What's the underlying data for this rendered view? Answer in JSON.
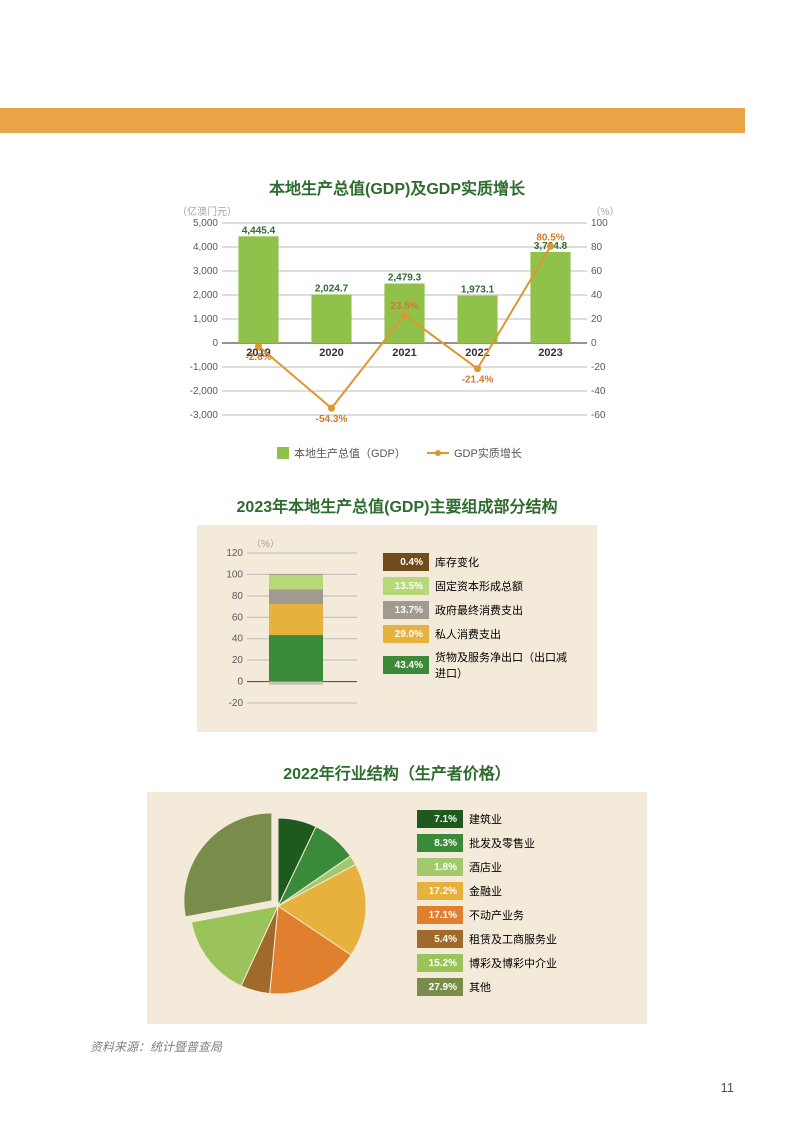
{
  "page_number": "11",
  "source_text": "资料来源：统计暨普查局",
  "chart1": {
    "type": "bar+line",
    "title": "本地生产总值(GDP)及GDP实质增长",
    "left_axis_label": "（亿澳门元）",
    "right_axis_label": "（%）",
    "years": [
      "2019",
      "2020",
      "2021",
      "2022",
      "2023"
    ],
    "bar_values": [
      4445.4,
      2024.7,
      2479.3,
      1973.1,
      3794.8
    ],
    "bar_labels": [
      "4,445.4",
      "2,024.7",
      "2,479.3",
      "1,973.1",
      "3,794.8"
    ],
    "line_values": [
      -2.6,
      -54.3,
      23.5,
      -21.4,
      80.5
    ],
    "line_labels": [
      "-2.6%",
      "-54.3%",
      "23.5%",
      "-21.4%",
      "80.5%"
    ],
    "left_ticks": [
      -3000,
      -2000,
      -1000,
      0,
      1000,
      2000,
      3000,
      4000,
      5000
    ],
    "left_tick_labels": [
      "-3,000",
      "-2,000",
      "-1,000",
      "0",
      "1,000",
      "2,000",
      "3,000",
      "4,000",
      "5,000"
    ],
    "right_ticks": [
      -60,
      -40,
      -20,
      0,
      20,
      40,
      60,
      80,
      100
    ],
    "right_tick_labels": [
      "-60",
      "-40",
      "-20",
      "0",
      "20",
      "40",
      "60",
      "80",
      "100"
    ],
    "bar_color": "#90c14b",
    "line_color": "#e0962e",
    "grid_color": "#bbbbbb",
    "legend_bar": "本地生产总值（GDP）",
    "legend_line": "GDP实质增长"
  },
  "chart2": {
    "type": "stacked-bar",
    "title": "2023年本地生产总值(GDP)主要组成部分结构",
    "axis_label": "（%）",
    "yticks": [
      -20,
      0,
      20,
      40,
      60,
      80,
      100,
      120
    ],
    "ytick_labels": [
      "-20",
      "0",
      "20",
      "40",
      "60",
      "80",
      "100",
      "120"
    ],
    "segments": [
      {
        "label": "0.4%",
        "name": "库存变化",
        "color": "#704c1b"
      },
      {
        "label": "13.5%",
        "name": "固定资本形成总额",
        "color": "#b6d878"
      },
      {
        "label": "13.7%",
        "name": "政府最终消费支出",
        "color": "#a09a90"
      },
      {
        "label": "29.0%",
        "name": "私人消费支出",
        "color": "#e7b13d"
      },
      {
        "label": "43.4%",
        "name": "货物及服务净出口（出口减进口）",
        "color": "#3a8a3a"
      }
    ]
  },
  "chart3": {
    "type": "pie",
    "title": "2022年行业结构（生产者价格）",
    "slices": [
      {
        "label": "7.1%",
        "name": "建筑业",
        "color": "#1e5a1e",
        "value": 7.1
      },
      {
        "label": "8.3%",
        "name": "批发及零售业",
        "color": "#3a8a3a",
        "value": 8.3
      },
      {
        "label": "1.8%",
        "name": "酒店业",
        "color": "#a3c96e",
        "value": 1.8
      },
      {
        "label": "17.2%",
        "name": "金融业",
        "color": "#e7b13d",
        "value": 17.2
      },
      {
        "label": "17.1%",
        "name": "不动产业务",
        "color": "#e0802e",
        "value": 17.1
      },
      {
        "label": "5.4%",
        "name": "租赁及工商服务业",
        "color": "#a06a2a",
        "value": 5.4
      },
      {
        "label": "15.2%",
        "name": "博彩及博彩中介业",
        "color": "#9ac45a",
        "value": 15.2
      },
      {
        "label": "27.9%",
        "name": "其他",
        "color": "#7a8c4a",
        "value": 27.9
      }
    ]
  }
}
